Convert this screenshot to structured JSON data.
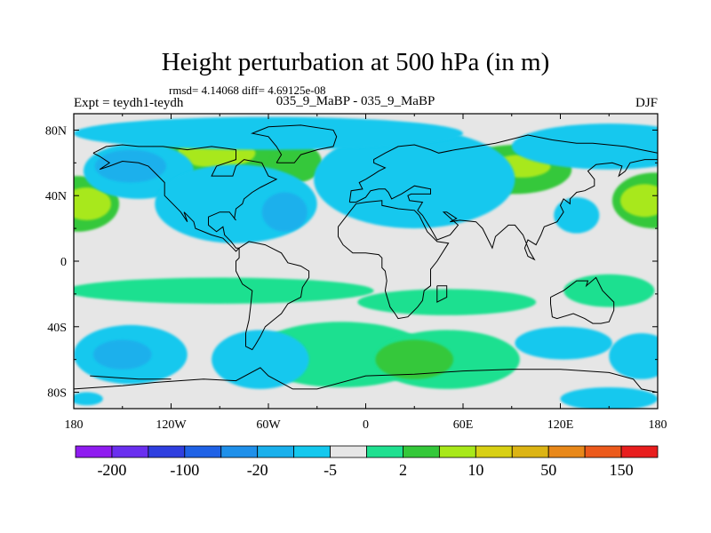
{
  "title": "Height perturbation at 500 hPa (in m)",
  "stats_text": "rmsd= 4.14068 diff= 4.69125e-08",
  "expt_label": "Expt = teydh1-teydh",
  "period_label": "035_9_MaBP - 035_9_MaBP",
  "season_label": "DJF",
  "colors": {
    "land_outline": "#000000",
    "neutral": "#e6e6e6"
  },
  "chart_data": {
    "type": "heatmap",
    "title": "Height perturbation at 500 hPa (in m)",
    "x_axis": {
      "range": [
        -180,
        180
      ],
      "ticks": [
        {
          "value": -180,
          "label": "180"
        },
        {
          "value": -120,
          "label": "120W"
        },
        {
          "value": -60,
          "label": "60W"
        },
        {
          "value": 0,
          "label": "0"
        },
        {
          "value": 60,
          "label": "60E"
        },
        {
          "value": 120,
          "label": "120E"
        },
        {
          "value": 180,
          "label": "180"
        }
      ]
    },
    "y_axis": {
      "range": [
        -90,
        90
      ],
      "ticks": [
        {
          "value": 80,
          "label": "80N"
        },
        {
          "value": 40,
          "label": "40N"
        },
        {
          "value": 0,
          "label": "0"
        },
        {
          "value": -40,
          "label": "40S"
        },
        {
          "value": -80,
          "label": "80S"
        }
      ]
    },
    "colorbar": {
      "colors": [
        "#8f1cf0",
        "#6a2fef",
        "#2f3fe0",
        "#1f62e6",
        "#1f90ea",
        "#1ab0ec",
        "#14c8ee",
        "#e6e6e6",
        "#1fe090",
        "#34c83a",
        "#a8e81a",
        "#d8d014",
        "#dcb414",
        "#e8881a",
        "#ec5a1c",
        "#e81e1e"
      ],
      "labels": [
        "-200",
        "-100",
        "-20",
        "-5",
        "2",
        "10",
        "50",
        "150"
      ]
    },
    "fields": [
      {
        "type": "ellipse",
        "lon": -95,
        "lat": 62,
        "rlon": 45,
        "rlat": 17,
        "value": 8
      },
      {
        "type": "ellipse",
        "lon": -92,
        "lat": 66,
        "rlon": 24,
        "rlat": 9,
        "value": 12
      },
      {
        "type": "ellipse",
        "lon": -178,
        "lat": 35,
        "rlon": 26,
        "rlat": 17,
        "value": 8
      },
      {
        "type": "ellipse",
        "lon": -172,
        "lat": 35,
        "rlon": 15,
        "rlat": 10,
        "value": 12
      },
      {
        "type": "ellipse",
        "lon": 178,
        "lat": 37,
        "rlon": 26,
        "rlat": 17,
        "value": 8
      },
      {
        "type": "ellipse",
        "lon": 172,
        "lat": 37,
        "rlon": 15,
        "rlat": 10,
        "value": 12
      },
      {
        "type": "ellipse",
        "lon": 92,
        "lat": 56,
        "rlon": 35,
        "rlat": 15,
        "value": 8
      },
      {
        "type": "ellipse",
        "lon": 96,
        "lat": 58,
        "rlon": 18,
        "rlat": 7,
        "value": 12
      },
      {
        "type": "ellipse",
        "lon": -43,
        "lat": 60,
        "rlon": 16,
        "rlat": 12,
        "value": 8
      },
      {
        "type": "ellipse",
        "lon": -140,
        "lat": 55,
        "rlon": 34,
        "rlat": 17,
        "value": -4
      },
      {
        "type": "ellipse",
        "lon": -145,
        "lat": 58,
        "rlon": 22,
        "rlat": 10,
        "value": -8
      },
      {
        "type": "ellipse",
        "lon": -80,
        "lat": 35,
        "rlon": 50,
        "rlat": 24,
        "value": -4
      },
      {
        "type": "ellipse",
        "lon": -50,
        "lat": 30,
        "rlon": 14,
        "rlat": 12,
        "value": -8
      },
      {
        "type": "ellipse",
        "lon": 30,
        "lat": 50,
        "rlon": 62,
        "rlat": 30,
        "value": -4
      },
      {
        "type": "ellipse",
        "lon": -60,
        "lat": 78,
        "rlon": 120,
        "rlat": 10,
        "value": -4
      },
      {
        "type": "ellipse",
        "lon": 150,
        "lat": 70,
        "rlon": 60,
        "rlat": 14,
        "value": -4
      },
      {
        "type": "ellipse",
        "lon": 130,
        "lat": 28,
        "rlon": 14,
        "rlat": 11,
        "value": -4
      },
      {
        "type": "ellipse",
        "lon": -90,
        "lat": -18,
        "rlon": 95,
        "rlat": 8,
        "value": 4
      },
      {
        "type": "ellipse",
        "lon": 50,
        "lat": -25,
        "rlon": 55,
        "rlat": 8,
        "value": 4
      },
      {
        "type": "ellipse",
        "lon": 150,
        "lat": -18,
        "rlon": 28,
        "rlat": 10,
        "value": 4
      },
      {
        "type": "ellipse",
        "lon": -15,
        "lat": -57,
        "rlon": 55,
        "rlat": 20,
        "value": 4
      },
      {
        "type": "ellipse",
        "lon": 50,
        "lat": -60,
        "rlon": 45,
        "rlat": 18,
        "value": 4
      },
      {
        "type": "ellipse",
        "lon": 30,
        "lat": -60,
        "rlon": 24,
        "rlat": 12,
        "value": 8
      },
      {
        "type": "ellipse",
        "lon": -145,
        "lat": -57,
        "rlon": 35,
        "rlat": 18,
        "value": -4
      },
      {
        "type": "ellipse",
        "lon": -150,
        "lat": -57,
        "rlon": 18,
        "rlat": 9,
        "value": -8
      },
      {
        "type": "ellipse",
        "lon": -65,
        "lat": -60,
        "rlon": 30,
        "rlat": 18,
        "value": -4
      },
      {
        "type": "ellipse",
        "lon": 122,
        "lat": -50,
        "rlon": 30,
        "rlat": 10,
        "value": -4
      },
      {
        "type": "ellipse",
        "lon": 170,
        "lat": -58,
        "rlon": 20,
        "rlat": 14,
        "value": -4
      },
      {
        "type": "ellipse",
        "lon": 150,
        "lat": -84,
        "rlon": 30,
        "rlat": 7,
        "value": -4
      },
      {
        "type": "ellipse",
        "lon": -172,
        "lat": -84,
        "rlon": 10,
        "rlat": 4,
        "value": -4
      }
    ],
    "coastlines": [
      [
        [
          -168,
          66
        ],
        [
          -160,
          70
        ],
        [
          -150,
          71
        ],
        [
          -140,
          70
        ],
        [
          -125,
          70
        ],
        [
          -110,
          68
        ],
        [
          -95,
          70
        ],
        [
          -80,
          68
        ],
        [
          -80,
          62
        ],
        [
          -92,
          58
        ],
        [
          -95,
          52
        ],
        [
          -82,
          52
        ],
        [
          -80,
          58
        ],
        [
          -75,
          62
        ],
        [
          -64,
          60
        ],
        [
          -60,
          52
        ],
        [
          -55,
          50
        ],
        [
          -65,
          45
        ],
        [
          -70,
          42
        ],
        [
          -75,
          38
        ],
        [
          -76,
          35
        ],
        [
          -80,
          32
        ],
        [
          -81,
          26
        ],
        [
          -80,
          25
        ],
        [
          -84,
          30
        ],
        [
          -90,
          30
        ],
        [
          -97,
          27
        ],
        [
          -97,
          22
        ],
        [
          -92,
          18
        ],
        [
          -88,
          21
        ],
        [
          -87,
          16
        ],
        [
          -83,
          12
        ],
        [
          -80,
          8
        ],
        [
          -78,
          8
        ],
        [
          -80,
          6
        ],
        [
          -82,
          8
        ],
        [
          -88,
          14
        ],
        [
          -95,
          16
        ],
        [
          -105,
          20
        ],
        [
          -106,
          24
        ],
        [
          -112,
          30
        ],
        [
          -110,
          24
        ],
        [
          -114,
          30
        ],
        [
          -118,
          34
        ],
        [
          -124,
          40
        ],
        [
          -124,
          46
        ],
        [
          -124,
          48
        ],
        [
          -128,
          52
        ],
        [
          -134,
          58
        ],
        [
          -140,
          60
        ],
        [
          -150,
          61
        ],
        [
          -158,
          58
        ],
        [
          -164,
          56
        ],
        [
          -158,
          60
        ],
        [
          -164,
          64
        ],
        [
          -168,
          66
        ]
      ],
      [
        [
          -78,
          8
        ],
        [
          -72,
          12
        ],
        [
          -62,
          10
        ],
        [
          -52,
          5
        ],
        [
          -48,
          -1
        ],
        [
          -40,
          -3
        ],
        [
          -35,
          -6
        ],
        [
          -35,
          -10
        ],
        [
          -39,
          -16
        ],
        [
          -40,
          -22
        ],
        [
          -48,
          -26
        ],
        [
          -52,
          -32
        ],
        [
          -57,
          -36
        ],
        [
          -62,
          -40
        ],
        [
          -65,
          -46
        ],
        [
          -68,
          -51
        ],
        [
          -70,
          -54
        ],
        [
          -74,
          -52
        ],
        [
          -74,
          -44
        ],
        [
          -72,
          -36
        ],
        [
          -71,
          -28
        ],
        [
          -70,
          -18
        ],
        [
          -76,
          -14
        ],
        [
          -80,
          -6
        ],
        [
          -80,
          0
        ],
        [
          -78,
          2
        ],
        [
          -78,
          8
        ]
      ],
      [
        [
          -55,
          60
        ],
        [
          -44,
          60
        ],
        [
          -40,
          65
        ],
        [
          -30,
          68
        ],
        [
          -20,
          70
        ],
        [
          -18,
          76
        ],
        [
          -20,
          80
        ],
        [
          -40,
          83
        ],
        [
          -60,
          82
        ],
        [
          -70,
          78
        ],
        [
          -60,
          76
        ],
        [
          -55,
          70
        ],
        [
          -52,
          65
        ],
        [
          -55,
          60
        ]
      ],
      [
        [
          -10,
          36
        ],
        [
          -9,
          43
        ],
        [
          -2,
          44
        ],
        [
          -4,
          48
        ],
        [
          0,
          50
        ],
        [
          5,
          53
        ],
        [
          8,
          55
        ],
        [
          12,
          57
        ],
        [
          5,
          60
        ],
        [
          5,
          62
        ],
        [
          12,
          66
        ],
        [
          20,
          70
        ],
        [
          30,
          71
        ],
        [
          40,
          68
        ],
        [
          45,
          66
        ],
        [
          55,
          68
        ],
        [
          68,
          70
        ],
        [
          80,
          72
        ],
        [
          100,
          77
        ],
        [
          115,
          74
        ],
        [
          130,
          72
        ],
        [
          140,
          72
        ],
        [
          160,
          70
        ],
        [
          170,
          68
        ],
        [
          180,
          66
        ],
        [
          180,
          62
        ],
        [
          172,
          62
        ],
        [
          163,
          60
        ],
        [
          160,
          55
        ],
        [
          156,
          52
        ],
        [
          158,
          58
        ],
        [
          152,
          60
        ],
        [
          142,
          59
        ],
        [
          137,
          55
        ],
        [
          141,
          50
        ],
        [
          141,
          46
        ],
        [
          135,
          43
        ],
        [
          130,
          42
        ],
        [
          126,
          38
        ],
        [
          126,
          35
        ],
        [
          122,
          38
        ],
        [
          120,
          34
        ],
        [
          122,
          30
        ],
        [
          118,
          24
        ],
        [
          110,
          21
        ],
        [
          108,
          16
        ],
        [
          105,
          10
        ],
        [
          100,
          13
        ],
        [
          98,
          8
        ],
        [
          100,
          3
        ],
        [
          104,
          1
        ],
        [
          101,
          6
        ],
        [
          97,
          16
        ],
        [
          92,
          22
        ],
        [
          88,
          22
        ],
        [
          80,
          15
        ],
        [
          78,
          8
        ],
        [
          72,
          20
        ],
        [
          68,
          24
        ],
        [
          58,
          25
        ],
        [
          52,
          24
        ],
        [
          56,
          26
        ],
        [
          50,
          30
        ],
        [
          48,
          30
        ],
        [
          57,
          22
        ],
        [
          52,
          16
        ],
        [
          44,
          13
        ],
        [
          40,
          20
        ],
        [
          35,
          28
        ],
        [
          32,
          31
        ],
        [
          35,
          36
        ],
        [
          27,
          37
        ],
        [
          26,
          40
        ],
        [
          28,
          41
        ],
        [
          40,
          41
        ],
        [
          40,
          44
        ],
        [
          30,
          46
        ],
        [
          22,
          41
        ],
        [
          20,
          40
        ],
        [
          16,
          38
        ],
        [
          14,
          42
        ],
        [
          12,
          44
        ],
        [
          8,
          44
        ],
        [
          3,
          43
        ],
        [
          0,
          39
        ],
        [
          -6,
          36
        ],
        [
          -10,
          36
        ]
      ],
      [
        [
          -17,
          21
        ],
        [
          -17,
          15
        ],
        [
          -14,
          10
        ],
        [
          -8,
          5
        ],
        [
          0,
          5
        ],
        [
          8,
          4
        ],
        [
          10,
          2
        ],
        [
          10,
          -4
        ],
        [
          12,
          -6
        ],
        [
          13,
          -12
        ],
        [
          12,
          -18
        ],
        [
          15,
          -28
        ],
        [
          18,
          -32
        ],
        [
          20,
          -35
        ],
        [
          26,
          -34
        ],
        [
          32,
          -28
        ],
        [
          35,
          -24
        ],
        [
          36,
          -18
        ],
        [
          40,
          -15
        ],
        [
          40,
          -10
        ],
        [
          40,
          -5
        ],
        [
          44,
          0
        ],
        [
          51,
          11
        ],
        [
          44,
          12
        ],
        [
          38,
          18
        ],
        [
          33,
          28
        ],
        [
          30,
          31
        ],
        [
          20,
          32
        ],
        [
          10,
          34
        ],
        [
          10,
          37
        ],
        [
          0,
          36
        ],
        [
          -6,
          35
        ],
        [
          -10,
          30
        ],
        [
          -17,
          21
        ]
      ],
      [
        [
          114,
          -22
        ],
        [
          122,
          -18
        ],
        [
          130,
          -12
        ],
        [
          137,
          -12
        ],
        [
          136,
          -15
        ],
        [
          142,
          -10
        ],
        [
          146,
          -18
        ],
        [
          153,
          -25
        ],
        [
          153,
          -30
        ],
        [
          150,
          -37
        ],
        [
          145,
          -38
        ],
        [
          140,
          -38
        ],
        [
          135,
          -35
        ],
        [
          128,
          -32
        ],
        [
          118,
          -35
        ],
        [
          115,
          -34
        ],
        [
          114,
          -26
        ],
        [
          114,
          -22
        ]
      ],
      [
        [
          -180,
          -78
        ],
        [
          -150,
          -76
        ],
        [
          -130,
          -74
        ],
        [
          -100,
          -72
        ],
        [
          -80,
          -73
        ],
        [
          -65,
          -65
        ],
        [
          -60,
          -70
        ],
        [
          -45,
          -78
        ],
        [
          -30,
          -78
        ],
        [
          0,
          -70
        ],
        [
          30,
          -69
        ],
        [
          60,
          -67
        ],
        [
          90,
          -66
        ],
        [
          120,
          -66
        ],
        [
          150,
          -68
        ],
        [
          165,
          -72
        ],
        [
          170,
          -78
        ],
        [
          180,
          -80
        ]
      ],
      [
        [
          44,
          -15
        ],
        [
          50,
          -15
        ],
        [
          50,
          -22
        ],
        [
          44,
          -25
        ],
        [
          44,
          -15
        ]
      ],
      [
        [
          -170,
          -70
        ],
        [
          -140,
          -72
        ],
        [
          -120,
          -72
        ]
      ]
    ]
  }
}
